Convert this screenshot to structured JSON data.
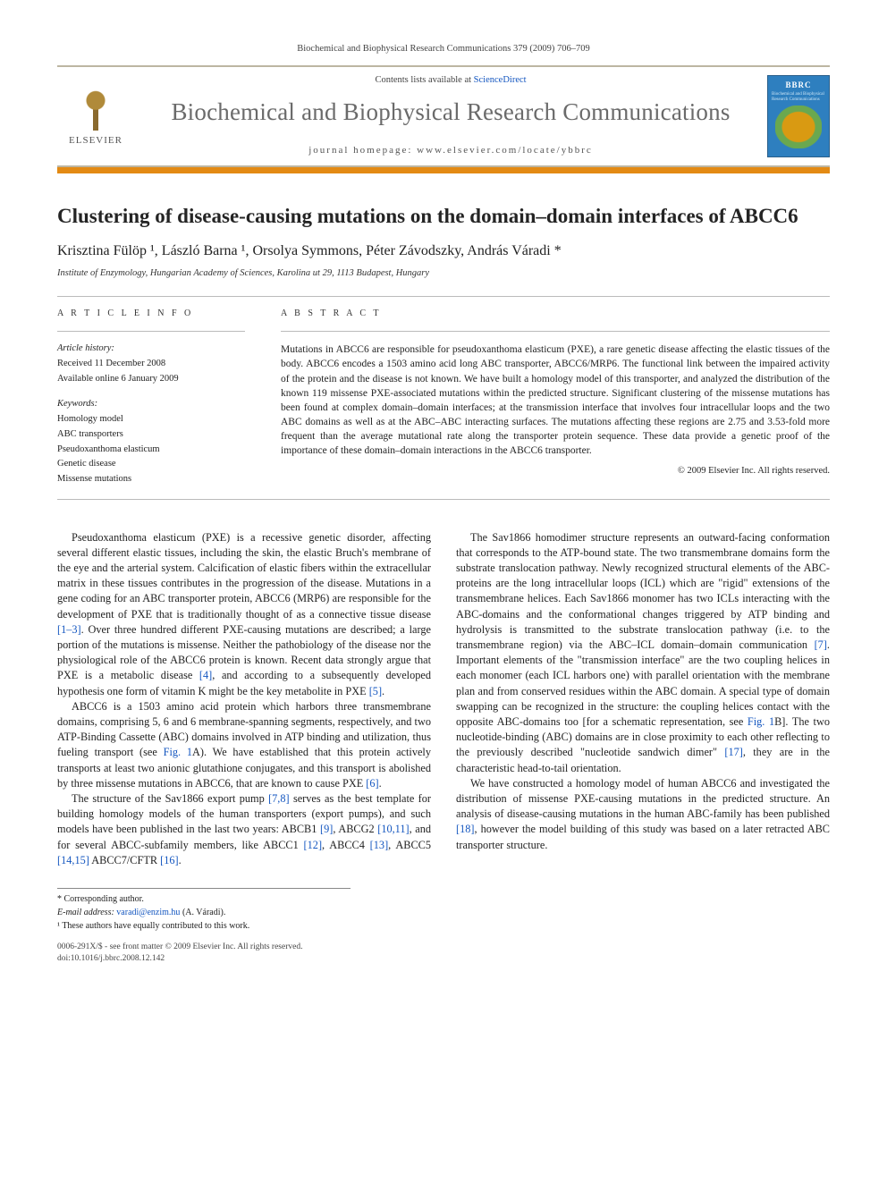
{
  "citation": "Biochemical and Biophysical Research Communications 379 (2009) 706–709",
  "header": {
    "contents_prefix": "Contents lists available at ",
    "contents_link": "ScienceDirect",
    "journal": "Biochemical and Biophysical Research Communications",
    "home_prefix": "journal homepage: ",
    "home_url": "www.elsevier.com/locate/ybbrc",
    "publisher": "ELSEVIER",
    "cover_abbrev": "BBRC",
    "cover_mini": "Biochemical and Biophysical Research Communications"
  },
  "title": "Clustering of disease-causing mutations on the domain–domain interfaces of ABCC6",
  "authors": "Krisztina Fülöp ¹, László Barna ¹, Orsolya Symmons, Péter Závodszky, András Váradi *",
  "affiliation": "Institute of Enzymology, Hungarian Academy of Sciences, Karolina ut 29, 1113 Budapest, Hungary",
  "article_info_heading": "A R T I C L E   I N F O",
  "abstract_heading": "A B S T R A C T",
  "history": {
    "head": "Article history:",
    "received": "Received 11 December 2008",
    "online": "Available online 6 January 2009"
  },
  "keywords_head": "Keywords:",
  "keywords": [
    "Homology model",
    "ABC transporters",
    "Pseudoxanthoma elasticum",
    "Genetic disease",
    "Missense mutations"
  ],
  "abstract": "Mutations in ABCC6 are responsible for pseudoxanthoma elasticum (PXE), a rare genetic disease affecting the elastic tissues of the body. ABCC6 encodes a 1503 amino acid long ABC transporter, ABCC6/MRP6. The functional link between the impaired activity of the protein and the disease is not known. We have built a homology model of this transporter, and analyzed the distribution of the known 119 missense PXE-associated mutations within the predicted structure. Significant clustering of the missense mutations has been found at complex domain–domain interfaces; at the transmission interface that involves four intracellular loops and the two ABC domains as well as at the ABC–ABC interacting surfaces. The mutations affecting these regions are 2.75 and 3.53-fold more frequent than the average mutational rate along the transporter protein sequence. These data provide a genetic proof of the importance of these domain–domain interactions in the ABCC6 transporter.",
  "copyright": "© 2009 Elsevier Inc. All rights reserved.",
  "body": {
    "p1a": "Pseudoxanthoma elasticum (PXE) is a recessive genetic disorder, affecting several different elastic tissues, including the skin, the elastic Bruch's membrane of the eye and the arterial system. Calcification of elastic fibers within the extracellular matrix in these tissues contributes in the progression of the disease. Mutations in a gene coding for an ABC transporter protein, ABCC6 (MRP6) are responsible for the development of PXE that is traditionally thought of as a connective tissue disease ",
    "p1b": ". Over three hundred different PXE-causing mutations are described; a large portion of the mutations is missense. Neither the pathobiology of the disease nor the physiological role of the ABCC6 protein is known. Recent data strongly argue that PXE is a metabolic disease ",
    "p1c": ", and according to a subsequently developed hypothesis one form of vitamin K might be the key metabolite in PXE ",
    "p2a": "ABCC6 is a 1503 amino acid protein which harbors three transmembrane domains, comprising 5, 6 and 6 membrane-spanning segments, respectively, and two ATP-Binding Cassette (ABC) domains involved in ATP binding and utilization, thus fueling transport (see ",
    "p2b": "A). We have established that this protein actively transports at least two anionic glutathione conjugates, and this transport is abolished by three missense mutations in ABCC6, that are known to cause PXE ",
    "p3a": "The structure of the Sav1866 export pump ",
    "p3b": " serves as the best template for building homology models of the human transporters (export pumps), and such models have been published in ",
    "p3c": "the last two years: ABCB1 ",
    "p3d": ", ABCG2 ",
    "p3e": ", and for several ABCC-subfamily members, like ABCC1 ",
    "p3f": ", ABCC4 ",
    "p3g": ", ABCC5 ",
    "p3h": " ABCC7/CFTR ",
    "p4a": "The Sav1866 homodimer structure represents an outward-facing conformation that corresponds to the ATP-bound state. The two transmembrane domains form the substrate translocation pathway. Newly recognized structural elements of the ABC-proteins are the long intracellular loops (ICL) which are \"rigid\" extensions of the transmembrane helices. Each Sav1866 monomer has two ICLs interacting with the ABC-domains and the conformational changes triggered by ATP binding and hydrolysis is transmitted to the substrate translocation pathway (i.e. to the transmembrane region) via the ABC–ICL domain–domain communication ",
    "p4b": ". Important elements of the \"transmission interface\" are the two coupling helices in each monomer (each ICL harbors one) with parallel orientation with the membrane plan and from conserved residues within the ABC domain. A special type of domain swapping can be recognized in the structure: the coupling helices contact with the opposite ABC-domains too [for a schematic representation, see ",
    "p4c": "B]. The two nucleotide-binding (ABC) domains are in close proximity to each other reflecting to the previously described \"nucleotide sandwich dimer\" ",
    "p4d": ", they are in the characteristic head-to-tail orientation.",
    "p5a": "We have constructed a homology model of human ABCC6 and investigated the distribution of missense PXE-causing mutations in the predicted structure. An analysis of disease-causing mutations in the human ABC-family has been published ",
    "p5b": ", however the model building of this study was based on a later retracted ABC transporter structure."
  },
  "refs": {
    "r1_3": "[1–3]",
    "r4": "[4]",
    "r5": "[5]",
    "fig1": "Fig. 1",
    "r6": "[6]",
    "r7_8": "[7,8]",
    "r9": "[9]",
    "r10_11": "[10,11]",
    "r12": "[12]",
    "r13": "[13]",
    "r14_15": "[14,15]",
    "r16": "[16]",
    "r7": "[7]",
    "fig1b": "Fig. 1",
    "r17": "[17]",
    "r18": "[18]"
  },
  "footnotes": {
    "corr": "* Corresponding author.",
    "email_label": "E-mail address: ",
    "email": "varadi@enzim.hu",
    "email_tail": " (A. Váradi).",
    "equal": "¹ These authors have equally contributed to this work."
  },
  "footer": {
    "l1": "0006-291X/$ - see front matter © 2009 Elsevier Inc. All rights reserved.",
    "l2": "doi:10.1016/j.bbrc.2008.12.142"
  },
  "colors": {
    "link": "#1557c0",
    "band": "#bdb6a2",
    "orange": "#e38a14",
    "journal_gray": "#6a6a6a"
  }
}
